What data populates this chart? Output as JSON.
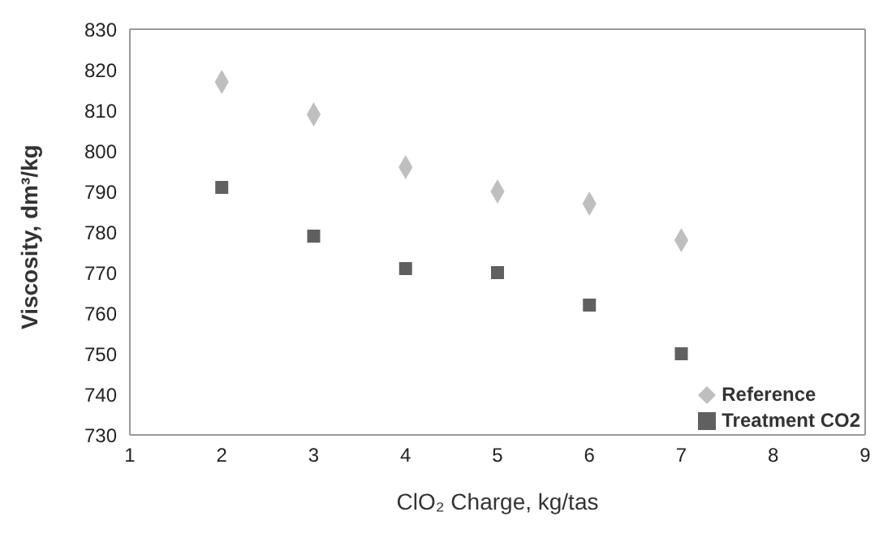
{
  "chart_data": {
    "type": "scatter",
    "xlabel": "ClO₂ Charge, kg/tas",
    "ylabel": "Viscosity, dm³/kg",
    "x": [
      2,
      3,
      4,
      5,
      6,
      7
    ],
    "series": [
      {
        "name": "Reference",
        "color": "#bfbfbf",
        "marker": "diamond",
        "values": [
          817,
          809,
          796,
          790,
          787,
          778
        ]
      },
      {
        "name": "Treatment CO2",
        "color": "#606060",
        "marker": "square",
        "values": [
          791,
          779,
          771,
          770,
          762,
          750
        ]
      }
    ],
    "xlim": [
      1,
      9
    ],
    "xticks": [
      1,
      2,
      3,
      4,
      5,
      6,
      7,
      8,
      9
    ],
    "ylim": [
      730,
      830
    ],
    "yticks": [
      730,
      740,
      750,
      760,
      770,
      780,
      790,
      800,
      810,
      820,
      830
    ],
    "legend": "bottom right"
  }
}
